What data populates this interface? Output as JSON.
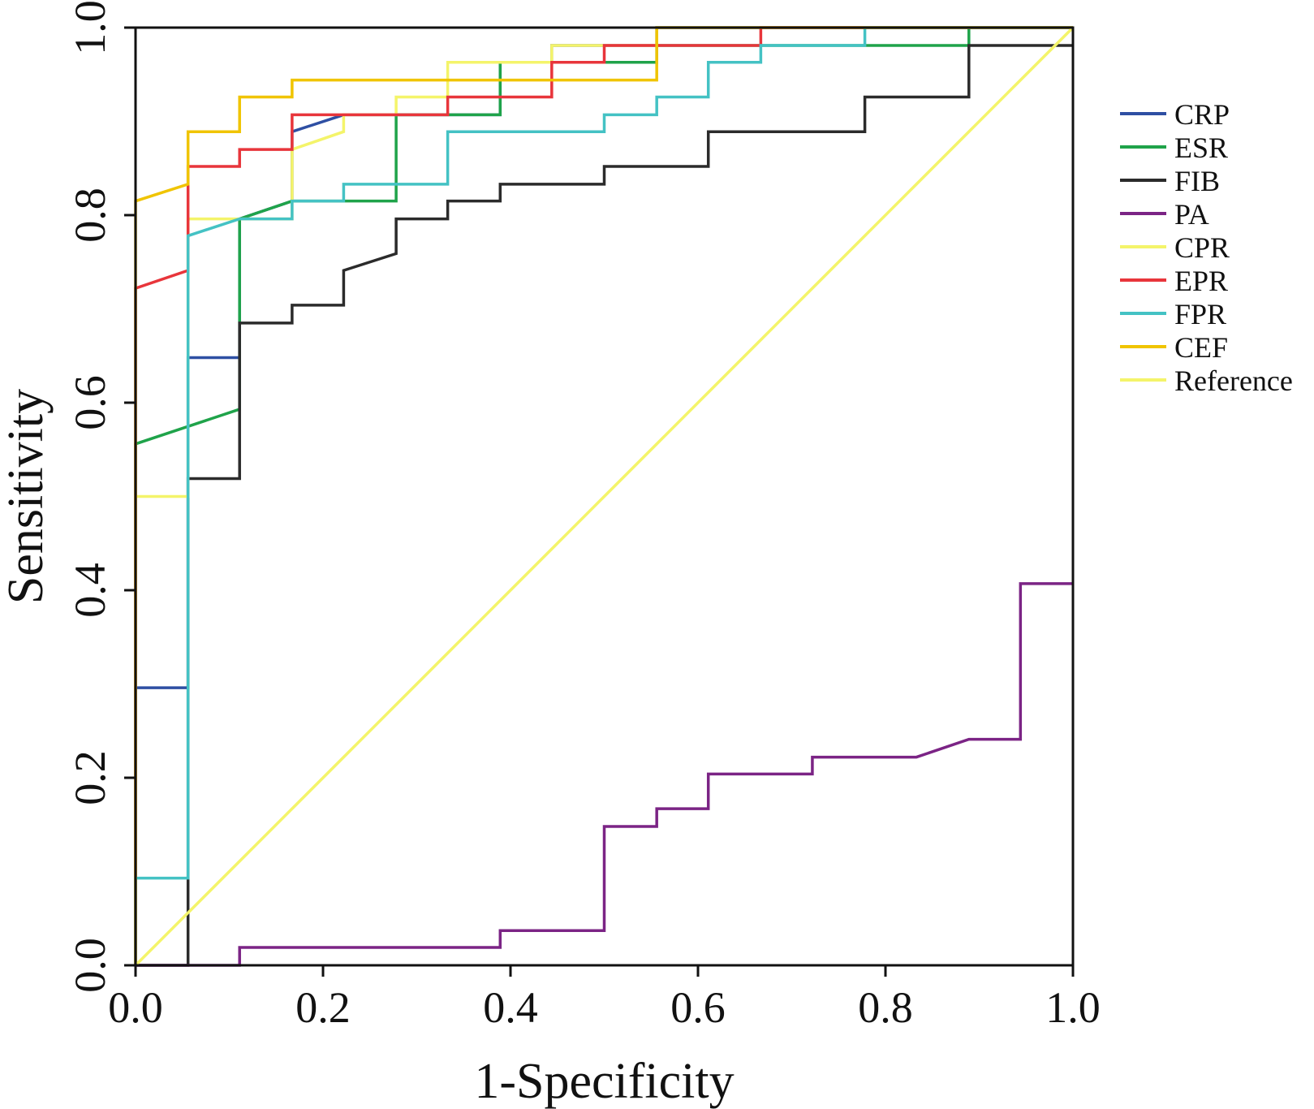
{
  "chart_data": {
    "type": "line",
    "title": "",
    "xlabel": "1-Specificity",
    "ylabel": "Sensitivity",
    "xlim": [
      0,
      1
    ],
    "ylim": [
      0,
      1
    ],
    "xticks": [
      "0.0",
      "0.2",
      "0.4",
      "0.6",
      "0.8",
      "1.0"
    ],
    "yticks": [
      "0.0",
      "0.2",
      "0.4",
      "0.6",
      "0.8",
      "1.0"
    ],
    "grid": false,
    "legend_position": "right",
    "series": [
      {
        "name": "CRP",
        "color": "#2e4fa3",
        "points": [
          [
            0,
            0
          ],
          [
            0,
            0.296
          ],
          [
            0.056,
            0.296
          ],
          [
            0.056,
            0.648
          ],
          [
            0.111,
            0.648
          ],
          [
            0.111,
            0.796
          ],
          [
            0.167,
            0.815
          ],
          [
            0.167,
            0.889
          ],
          [
            0.222,
            0.907
          ],
          [
            0.389,
            0.907
          ],
          [
            0.389,
            0.963
          ],
          [
            0.444,
            0.963
          ],
          [
            0.444,
            0.981
          ],
          [
            0.556,
            0.981
          ],
          [
            0.556,
            1
          ],
          [
            1,
            1
          ]
        ]
      },
      {
        "name": "ESR",
        "color": "#1fa34a",
        "points": [
          [
            0,
            0
          ],
          [
            0,
            0.556
          ],
          [
            0.111,
            0.593
          ],
          [
            0.111,
            0.796
          ],
          [
            0.167,
            0.815
          ],
          [
            0.222,
            0.815
          ],
          [
            0.278,
            0.815
          ],
          [
            0.278,
            0.907
          ],
          [
            0.389,
            0.907
          ],
          [
            0.389,
            0.963
          ],
          [
            0.5,
            0.963
          ],
          [
            0.556,
            0.963
          ],
          [
            0.556,
            0.981
          ],
          [
            0.889,
            0.981
          ],
          [
            0.889,
            1
          ],
          [
            1,
            1
          ]
        ]
      },
      {
        "name": "FIB",
        "color": "#2b2b2b",
        "points": [
          [
            0,
            0
          ],
          [
            0.056,
            0
          ],
          [
            0.056,
            0.519
          ],
          [
            0.111,
            0.519
          ],
          [
            0.111,
            0.685
          ],
          [
            0.167,
            0.685
          ],
          [
            0.167,
            0.704
          ],
          [
            0.222,
            0.704
          ],
          [
            0.222,
            0.741
          ],
          [
            0.278,
            0.759
          ],
          [
            0.278,
            0.796
          ],
          [
            0.333,
            0.796
          ],
          [
            0.333,
            0.815
          ],
          [
            0.389,
            0.815
          ],
          [
            0.389,
            0.833
          ],
          [
            0.5,
            0.833
          ],
          [
            0.5,
            0.852
          ],
          [
            0.611,
            0.852
          ],
          [
            0.611,
            0.889
          ],
          [
            0.778,
            0.889
          ],
          [
            0.778,
            0.926
          ],
          [
            0.889,
            0.926
          ],
          [
            0.889,
            0.981
          ],
          [
            1,
            0.981
          ]
        ]
      },
      {
        "name": "PA",
        "color": "#7b2485",
        "points": [
          [
            0,
            0
          ],
          [
            0.111,
            0
          ],
          [
            0.111,
            0.019
          ],
          [
            0.389,
            0.019
          ],
          [
            0.389,
            0.037
          ],
          [
            0.5,
            0.037
          ],
          [
            0.5,
            0.148
          ],
          [
            0.556,
            0.148
          ],
          [
            0.556,
            0.167
          ],
          [
            0.611,
            0.167
          ],
          [
            0.611,
            0.204
          ],
          [
            0.722,
            0.204
          ],
          [
            0.722,
            0.222
          ],
          [
            0.833,
            0.222
          ],
          [
            0.889,
            0.241
          ],
          [
            0.944,
            0.241
          ],
          [
            0.944,
            0.407
          ],
          [
            1,
            0.407
          ]
        ]
      },
      {
        "name": "CPR",
        "color": "#f4f46a",
        "points": [
          [
            0,
            0
          ],
          [
            0,
            0.5
          ],
          [
            0.056,
            0.5
          ],
          [
            0.056,
            0.796
          ],
          [
            0.111,
            0.796
          ],
          [
            0.167,
            0.796
          ],
          [
            0.167,
            0.87
          ],
          [
            0.222,
            0.889
          ],
          [
            0.222,
            0.907
          ],
          [
            0.278,
            0.907
          ],
          [
            0.278,
            0.926
          ],
          [
            0.333,
            0.926
          ],
          [
            0.333,
            0.963
          ],
          [
            0.444,
            0.963
          ],
          [
            0.444,
            0.981
          ],
          [
            0.556,
            0.981
          ],
          [
            0.556,
            1
          ],
          [
            1,
            1
          ]
        ]
      },
      {
        "name": "EPR",
        "color": "#e8353b",
        "points": [
          [
            0,
            0
          ],
          [
            0,
            0.722
          ],
          [
            0.056,
            0.741
          ],
          [
            0.056,
            0.852
          ],
          [
            0.111,
            0.852
          ],
          [
            0.111,
            0.87
          ],
          [
            0.167,
            0.87
          ],
          [
            0.167,
            0.907
          ],
          [
            0.333,
            0.907
          ],
          [
            0.333,
            0.926
          ],
          [
            0.444,
            0.926
          ],
          [
            0.444,
            0.963
          ],
          [
            0.5,
            0.963
          ],
          [
            0.5,
            0.981
          ],
          [
            0.667,
            0.981
          ],
          [
            0.667,
            1
          ],
          [
            1,
            1
          ]
        ]
      },
      {
        "name": "FPR",
        "color": "#44c2c4",
        "points": [
          [
            0,
            0
          ],
          [
            0,
            0.093
          ],
          [
            0.056,
            0.093
          ],
          [
            0.056,
            0.778
          ],
          [
            0.111,
            0.796
          ],
          [
            0.167,
            0.796
          ],
          [
            0.167,
            0.815
          ],
          [
            0.222,
            0.815
          ],
          [
            0.222,
            0.833
          ],
          [
            0.333,
            0.833
          ],
          [
            0.333,
            0.889
          ],
          [
            0.5,
            0.889
          ],
          [
            0.5,
            0.907
          ],
          [
            0.556,
            0.907
          ],
          [
            0.556,
            0.926
          ],
          [
            0.611,
            0.926
          ],
          [
            0.611,
            0.963
          ],
          [
            0.667,
            0.963
          ],
          [
            0.667,
            0.981
          ],
          [
            0.778,
            0.981
          ],
          [
            0.778,
            1
          ],
          [
            1,
            1
          ]
        ]
      },
      {
        "name": "CEF",
        "color": "#f0c400",
        "points": [
          [
            0,
            0
          ],
          [
            0,
            0.815
          ],
          [
            0.056,
            0.833
          ],
          [
            0.056,
            0.889
          ],
          [
            0.111,
            0.889
          ],
          [
            0.111,
            0.926
          ],
          [
            0.167,
            0.926
          ],
          [
            0.167,
            0.944
          ],
          [
            0.556,
            0.944
          ],
          [
            0.556,
            1
          ],
          [
            1,
            1
          ]
        ]
      },
      {
        "name": "Reference",
        "color": "#f4f46a",
        "points": [
          [
            0,
            0
          ],
          [
            1,
            1
          ]
        ]
      }
    ]
  }
}
